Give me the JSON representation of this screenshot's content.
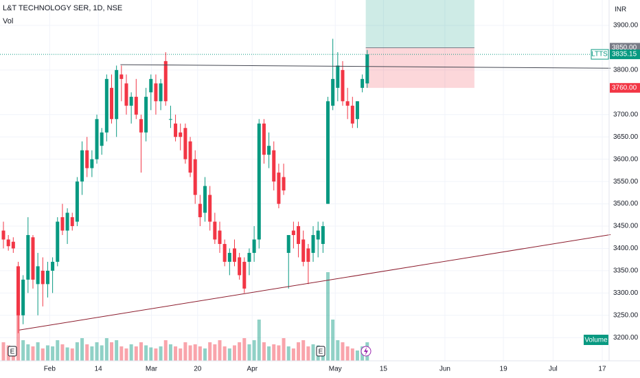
{
  "chart_data": {
    "type": "candlestick",
    "title": "L&T TECHNOLOGY SER, 1D, NSE",
    "volume_title": "Vol",
    "currency": "INR",
    "volume_label": "Volume",
    "symbol": "LTTS",
    "up_color": "#089981",
    "down_color": "#f23645",
    "grid": true,
    "x": [
      0,
      1,
      2,
      3,
      4,
      5,
      6,
      7,
      8,
      9,
      10,
      11,
      12,
      13,
      14,
      15,
      16,
      17,
      18,
      19,
      20,
      21,
      22,
      23,
      24,
      25,
      26,
      27,
      28,
      29,
      30,
      31,
      32,
      33,
      34,
      35,
      36,
      37,
      38,
      39,
      40,
      41,
      42,
      43,
      44,
      45,
      46,
      47,
      48,
      49,
      50,
      51,
      52,
      53,
      54,
      55,
      56,
      57,
      58,
      59,
      60,
      61,
      62,
      63,
      64,
      65,
      66,
      67,
      68,
      69,
      70,
      71,
      72,
      73,
      74
    ],
    "open": [
      3440,
      3420,
      3415,
      3360,
      3250,
      3330,
      3425,
      3320,
      3350,
      3320,
      3350,
      3370,
      3470,
      3440,
      3470,
      3460,
      3550,
      3620,
      3580,
      3600,
      3630,
      3660,
      3760,
      3690,
      3790,
      3770,
      3720,
      3740,
      3690,
      3660,
      3750,
      3770,
      3730,
      3820,
      3690,
      3680,
      3660,
      3670,
      3640,
      3600,
      3500,
      3480,
      3520,
      3460,
      3440,
      3410,
      3370,
      3400,
      3380,
      3370,
      3370,
      3390,
      3420,
      3680,
      3610,
      3620,
      3570,
      3560,
      3390,
      3440,
      3450,
      3420,
      3400,
      3390,
      3420,
      3410,
      3500,
      3720,
      3760,
      3800,
      3730,
      3720,
      3690,
      3760,
      3770
    ],
    "high": [
      3460,
      3430,
      3425,
      3370,
      3340,
      3470,
      3430,
      3390,
      3380,
      3370,
      3380,
      3470,
      3500,
      3490,
      3480,
      3560,
      3640,
      3650,
      3620,
      3700,
      3670,
      3790,
      3790,
      3810,
      3810,
      3790,
      3750,
      3780,
      3700,
      3760,
      3790,
      3790,
      3780,
      3840,
      3720,
      3700,
      3680,
      3680,
      3650,
      3620,
      3520,
      3560,
      3540,
      3480,
      3460,
      3420,
      3400,
      3420,
      3390,
      3380,
      3400,
      3450,
      3690,
      3690,
      3660,
      3640,
      3590,
      3590,
      3430,
      3460,
      3460,
      3440,
      3410,
      3450,
      3460,
      3460,
      3740,
      3870,
      3840,
      3820,
      3760,
      3740,
      3730,
      3790,
      3845
    ],
    "low": [
      3400,
      3395,
      3390,
      3210,
      3230,
      3300,
      3310,
      3250,
      3270,
      3290,
      3300,
      3360,
      3430,
      3410,
      3440,
      3450,
      3520,
      3560,
      3560,
      3590,
      3610,
      3640,
      3680,
      3650,
      3730,
      3700,
      3680,
      3690,
      3570,
      3640,
      3710,
      3700,
      3710,
      3720,
      3670,
      3640,
      3620,
      3590,
      3560,
      3500,
      3450,
      3460,
      3440,
      3410,
      3390,
      3360,
      3340,
      3360,
      3330,
      3300,
      3340,
      3370,
      3400,
      3590,
      3580,
      3530,
      3490,
      3520,
      3310,
      3400,
      3380,
      3360,
      3320,
      3370,
      3380,
      3390,
      3500,
      3710,
      3730,
      3720,
      3690,
      3670,
      3670,
      3750,
      3760
    ],
    "close": [
      3420,
      3405,
      3400,
      3250,
      3330,
      3430,
      3330,
      3360,
      3320,
      3350,
      3370,
      3460,
      3440,
      3480,
      3450,
      3550,
      3620,
      3580,
      3600,
      3690,
      3660,
      3780,
      3690,
      3800,
      3780,
      3720,
      3740,
      3700,
      3660,
      3740,
      3780,
      3730,
      3770,
      3730,
      3690,
      3650,
      3650,
      3600,
      3570,
      3520,
      3470,
      3540,
      3460,
      3420,
      3410,
      3370,
      3390,
      3370,
      3340,
      3310,
      3390,
      3420,
      3680,
      3610,
      3630,
      3550,
      3500,
      3530,
      3430,
      3430,
      3410,
      3370,
      3370,
      3430,
      3440,
      3450,
      3730,
      3780,
      3810,
      3730,
      3720,
      3680,
      3730,
      3780,
      3835.15
    ],
    "volume": [
      18,
      15,
      12,
      55,
      20,
      16,
      14,
      18,
      12,
      15,
      14,
      20,
      16,
      13,
      12,
      18,
      22,
      16,
      14,
      18,
      15,
      22,
      18,
      20,
      14,
      12,
      16,
      14,
      18,
      15,
      13,
      12,
      14,
      20,
      16,
      14,
      12,
      18,
      15,
      16,
      14,
      12,
      18,
      16,
      20,
      14,
      12,
      15,
      18,
      22,
      16,
      20,
      40,
      18,
      14,
      16,
      15,
      22,
      14,
      12,
      18,
      20,
      14,
      16,
      15,
      12,
      86,
      40,
      20,
      18,
      14,
      12,
      10,
      14,
      18
    ],
    "volume_ylim": [
      0,
      350
    ],
    "xlim": [
      -0.7,
      123.2
    ],
    "xticks": [
      {
        "value": 9.4,
        "label": "Feb"
      },
      {
        "value": 19.3,
        "label": "14"
      },
      {
        "value": 30.1,
        "label": "Mar"
      },
      {
        "value": 39.5,
        "label": "20"
      },
      {
        "value": 50.6,
        "label": "Apr"
      },
      {
        "value": 67.5,
        "label": "May"
      },
      {
        "value": 77.3,
        "label": "15"
      },
      {
        "value": 89.8,
        "label": "Jun"
      },
      {
        "value": 101.7,
        "label": "19"
      },
      {
        "value": 111.8,
        "label": "Jul"
      },
      {
        "value": 121.8,
        "label": "17"
      }
    ],
    "ylim": [
      3148,
      3957
    ],
    "yticks": [
      {
        "value": 3200,
        "label": "3200.00"
      },
      {
        "value": 3250,
        "label": "3250.00"
      },
      {
        "value": 3300,
        "label": "3300.00"
      },
      {
        "value": 3350,
        "label": "3350.00"
      },
      {
        "value": 3400,
        "label": "3400.00"
      },
      {
        "value": 3450,
        "label": "3450.00"
      },
      {
        "value": 3500,
        "label": "3500.00"
      },
      {
        "value": 3550,
        "label": "3550.00"
      },
      {
        "value": 3600,
        "label": "3600.00"
      },
      {
        "value": 3650,
        "label": "3650.00"
      },
      {
        "value": 3700,
        "label": "3700.00"
      },
      {
        "value": 3800,
        "label": "3800.00"
      },
      {
        "value": 3900,
        "label": "3900.00"
      }
    ],
    "target": {
      "value": 3850,
      "label": "3850.00"
    },
    "last": 3835.15,
    "stop": {
      "value": 3760,
      "label": "3760.00"
    },
    "position_x": [
      73.7,
      95.8
    ],
    "trendlines": [
      {
        "color": "#434651",
        "x": [
          23.8,
          123.5
        ],
        "y": [
          3812,
          3804
        ]
      },
      {
        "color": "#8b1a2b",
        "x": [
          3.2,
          123.5
        ],
        "y": [
          3217,
          3431
        ]
      }
    ]
  }
}
